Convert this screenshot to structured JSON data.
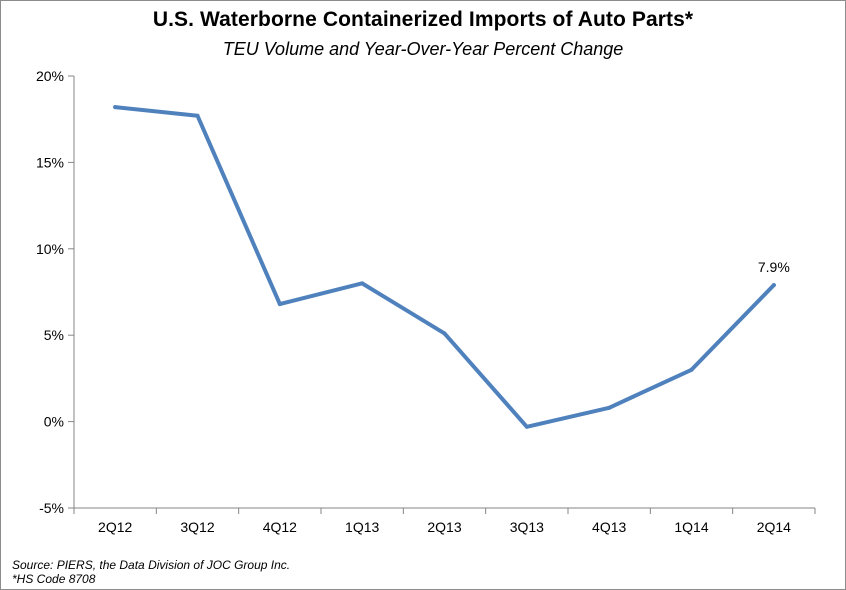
{
  "chart_data": {
    "type": "line",
    "title": "U.S. Waterborne Containerized Imports of Auto Parts*",
    "subtitle": "TEU Volume and Year-Over-Year Percent Change",
    "categories": [
      "2Q12",
      "3Q12",
      "4Q12",
      "1Q13",
      "2Q13",
      "3Q13",
      "4Q13",
      "1Q14",
      "2Q14"
    ],
    "series": [
      {
        "values": [
          18.2,
          17.7,
          6.8,
          8.0,
          5.1,
          -0.3,
          0.8,
          3.0,
          7.9
        ]
      }
    ],
    "y_ticks": [
      "20%",
      "15%",
      "10%",
      "5%",
      "0%",
      "-5%"
    ],
    "ylim": [
      -5,
      20
    ],
    "annotations": [
      {
        "category": "2Q14",
        "text": "7.9%"
      }
    ],
    "grid": false,
    "line_color": "#4f81bd"
  },
  "footer": {
    "source": "Source: PIERS, the Data Division of JOC Group Inc.",
    "note": "*HS Code 8708"
  }
}
